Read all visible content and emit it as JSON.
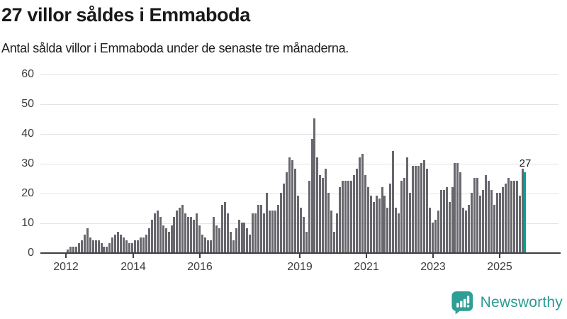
{
  "header": {
    "title": "27 villor såldes i Emmaboda",
    "subtitle": "Antal sålda villor i Emmaboda under de senaste tre månaderna."
  },
  "chart_data": {
    "type": "bar",
    "title": "27 villor såldes i Emmaboda",
    "subtitle": "Antal sålda villor i Emmaboda under de senaste tre månaderna.",
    "x_start": "2012-01",
    "frequency": "monthly",
    "values": [
      1,
      2,
      2,
      2,
      3,
      4,
      6,
      8,
      5,
      4,
      4,
      4,
      3,
      2,
      2,
      3,
      5,
      6,
      7,
      6,
      5,
      4,
      3,
      3,
      4,
      4,
      5,
      5,
      6,
      8,
      11,
      13,
      14,
      12,
      9,
      8,
      7,
      9,
      12,
      14,
      15,
      16,
      13,
      12,
      12,
      11,
      13,
      9,
      6,
      5,
      4,
      4,
      12,
      9,
      8,
      16,
      17,
      13,
      7,
      4,
      8,
      11,
      10,
      10,
      8,
      6,
      13,
      13,
      16,
      16,
      13,
      20,
      14,
      14,
      14,
      16,
      20,
      23,
      27,
      32,
      31,
      28,
      19,
      15,
      12,
      7,
      24,
      38,
      45,
      32,
      26,
      25,
      28,
      20,
      14,
      7,
      13,
      22,
      24,
      24,
      24,
      24,
      26,
      28,
      32,
      33,
      26,
      22,
      19,
      17,
      19,
      18,
      22,
      19,
      15,
      23,
      34,
      15,
      13,
      24,
      25,
      32,
      20,
      29,
      29,
      29,
      30,
      31,
      28,
      15,
      10,
      11,
      14,
      21,
      21,
      22,
      17,
      22,
      30,
      30,
      27,
      15,
      14,
      16,
      20,
      25,
      25,
      19,
      21,
      26,
      24,
      21,
      16,
      20,
      20,
      22,
      23,
      25,
      24,
      24,
      24,
      19,
      28,
      27
    ],
    "highlight": {
      "index": 163,
      "value": 27,
      "label": "27",
      "color": "#0da094"
    },
    "bar_color": "#67676d",
    "y_ticks": [
      "0",
      "10",
      "20",
      "30",
      "40",
      "50",
      "60"
    ],
    "ylim": [
      0,
      60
    ],
    "x_tick_labels": [
      "2012",
      "2014",
      "2016",
      "2019",
      "2021",
      "2023",
      "2025"
    ],
    "grid": true,
    "legend": "none",
    "annotation": "27"
  },
  "footer": {
    "brand": "Newsworthy"
  },
  "colors": {
    "bar_gray": "#67676d",
    "accent_teal": "#0da094",
    "logo_teal": "#2b9b93",
    "axis": "#3f3f42",
    "gridline": "#e3e3e3"
  }
}
